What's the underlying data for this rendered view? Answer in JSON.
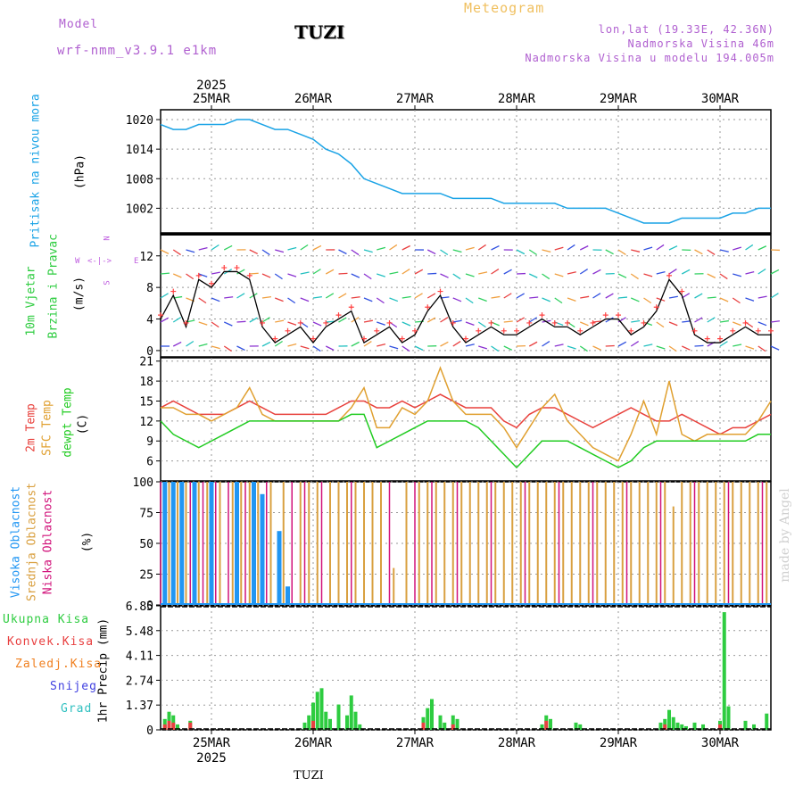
{
  "header": {
    "model_label": "Model",
    "model_name": "wrf-nmm_v3.9.1 e1km",
    "station": "TUZI",
    "title": "Meteogram",
    "lonlat": "lon,lat (19.33E, 42.36N)",
    "altitude": "Nadmorska Visina 46m",
    "model_altitude": "Nadmorska Visina u modelu 194.005m",
    "watermark": "made by Angel",
    "footer_station": "TUZI"
  },
  "colors": {
    "pressure": "#1aa3e6",
    "temp2m": "#e8413c",
    "sfc": "#e0a030",
    "dewpt": "#22cc22",
    "high_cloud": "#2196f3",
    "mid_cloud": "#d9a040",
    "low_cloud": "#d1127a",
    "total_precip": "#2ecc40",
    "conv_precip": "#e84040",
    "frozen": "#f08020",
    "snow": "#4040e0",
    "hail": "#30c0c0",
    "wind_label": "#2ecc40",
    "compass": "#c060e0"
  },
  "chart_data": [
    {
      "type": "line",
      "panel": "pressure",
      "ylabel_name": "Pritisak na nivou mora",
      "ylabel_unit": "(hPa)",
      "ylim": [
        997,
        1022
      ],
      "yticks": [
        "1020",
        "1014",
        "1008",
        "1002"
      ],
      "xlim": [
        0,
        144
      ],
      "grid": true,
      "series": [
        {
          "x": [
            0,
            3,
            6,
            9,
            12,
            15,
            18,
            21,
            24,
            27,
            30,
            33,
            36,
            39,
            42,
            45,
            48,
            51,
            54,
            57,
            60,
            63,
            66,
            69,
            72,
            75,
            78,
            81,
            84,
            87,
            90,
            93,
            96,
            99,
            102,
            105,
            108,
            111,
            114,
            117,
            120,
            123,
            126,
            129,
            132,
            135,
            138,
            141,
            144
          ],
          "values": [
            1019,
            1018,
            1018,
            1019,
            1019,
            1019,
            1020,
            1020,
            1019,
            1018,
            1018,
            1017,
            1016,
            1014,
            1013,
            1011,
            1008,
            1007,
            1006,
            1005,
            1005,
            1005,
            1005,
            1004,
            1004,
            1004,
            1004,
            1003,
            1003,
            1003,
            1003,
            1003,
            1002,
            1002,
            1002,
            1002,
            1001,
            1000,
            999,
            999,
            999,
            1000,
            1000,
            1000,
            1000,
            1001,
            1001,
            1002,
            1002
          ]
        }
      ]
    },
    {
      "type": "line",
      "panel": "wind",
      "ylabel_name1": "10m Vjetar",
      "ylabel_name2": "Brzina i Pravac",
      "ylabel_unit": "(m/s)",
      "ylim": [
        -0.8,
        14.8
      ],
      "yticks": [
        "12",
        "8",
        "4",
        "0"
      ],
      "compass": {
        "n": "N",
        "s": "S",
        "e": "E",
        "w": "W"
      },
      "xlim": [
        0,
        144
      ],
      "grid": true,
      "series": [
        {
          "x": [
            0,
            3,
            6,
            9,
            12,
            15,
            18,
            21,
            24,
            27,
            30,
            33,
            36,
            39,
            42,
            45,
            48,
            51,
            54,
            57,
            60,
            63,
            66,
            69,
            72,
            75,
            78,
            81,
            84,
            87,
            90,
            93,
            96,
            99,
            102,
            105,
            108,
            111,
            114,
            117,
            120,
            123,
            126,
            129,
            132,
            135,
            138,
            141,
            144
          ],
          "values": [
            4,
            7,
            3,
            9,
            8,
            10,
            10,
            9,
            3,
            1,
            2,
            3,
            1,
            3,
            4,
            5,
            1,
            2,
            3,
            1,
            2,
            5,
            7,
            3,
            1,
            2,
            3,
            2,
            2,
            3,
            4,
            3,
            3,
            2,
            3,
            4,
            4,
            2,
            3,
            5,
            9,
            7,
            2,
            1,
            1,
            2,
            3,
            2,
            2
          ]
        }
      ]
    },
    {
      "type": "line",
      "panel": "temperature",
      "ylabel_name1": "2m Temp",
      "ylabel_name2": "SFC Temp",
      "ylabel_name3": "dewpt Temp",
      "ylabel_unit": "(C)",
      "ylim": [
        3,
        21.5
      ],
      "yticks": [
        "21",
        "18",
        "15",
        "12",
        "9",
        "6"
      ],
      "xlim": [
        0,
        144
      ],
      "grid": true,
      "series": [
        {
          "x": [
            0,
            3,
            6,
            9,
            12,
            15,
            18,
            21,
            24,
            27,
            30,
            33,
            36,
            39,
            42,
            45,
            48,
            51,
            54,
            57,
            60,
            63,
            66,
            69,
            72,
            75,
            78,
            81,
            84,
            87,
            90,
            93,
            96,
            99,
            102,
            105,
            108,
            111,
            114,
            117,
            120,
            123,
            126,
            129,
            132,
            135,
            138,
            141,
            144
          ],
          "values": [
            14,
            15,
            14,
            13,
            13,
            13,
            14,
            15,
            14,
            13,
            13,
            13,
            13,
            13,
            14,
            15,
            15,
            14,
            14,
            15,
            14,
            15,
            16,
            15,
            14,
            14,
            14,
            12,
            11,
            13,
            14,
            14,
            13,
            12,
            11,
            12,
            13,
            14,
            13,
            12,
            12,
            13,
            12,
            11,
            10,
            11,
            11,
            12,
            13
          ]
        },
        {
          "x": [
            0,
            3,
            6,
            9,
            12,
            15,
            18,
            21,
            24,
            27,
            30,
            33,
            36,
            39,
            42,
            45,
            48,
            51,
            54,
            57,
            60,
            63,
            66,
            69,
            72,
            75,
            78,
            81,
            84,
            87,
            90,
            93,
            96,
            99,
            102,
            105,
            108,
            111,
            114,
            117,
            120,
            123,
            126,
            129,
            132,
            135,
            138,
            141,
            144
          ],
          "values": [
            14,
            14,
            13,
            13,
            12,
            13,
            14,
            17,
            13,
            12,
            12,
            12,
            12,
            12,
            12,
            14,
            17,
            11,
            11,
            14,
            13,
            15,
            20,
            15,
            13,
            13,
            13,
            11,
            8,
            11,
            14,
            16,
            12,
            10,
            8,
            7,
            6,
            10,
            15,
            10,
            18,
            10,
            9,
            10,
            10,
            10,
            10,
            12,
            15
          ]
        },
        {
          "x": [
            0,
            3,
            6,
            9,
            12,
            15,
            18,
            21,
            24,
            27,
            30,
            33,
            36,
            39,
            42,
            45,
            48,
            51,
            54,
            57,
            60,
            63,
            66,
            69,
            72,
            75,
            78,
            81,
            84,
            87,
            90,
            93,
            96,
            99,
            102,
            105,
            108,
            111,
            114,
            117,
            120,
            123,
            126,
            129,
            132,
            135,
            138,
            141,
            144
          ],
          "values": [
            12,
            10,
            9,
            8,
            9,
            10,
            11,
            12,
            12,
            12,
            12,
            12,
            12,
            12,
            12,
            13,
            13,
            8,
            9,
            10,
            11,
            12,
            12,
            12,
            12,
            11,
            9,
            7,
            5,
            7,
            9,
            9,
            9,
            8,
            7,
            6,
            5,
            6,
            8,
            9,
            9,
            9,
            9,
            9,
            9,
            9,
            9,
            10,
            10
          ]
        }
      ]
    },
    {
      "type": "bar",
      "panel": "cloud",
      "ylabel_name1": "Visoka Oblacnost",
      "ylabel_name2": "Srednja Oblacnost",
      "ylabel_name3": "Niska Oblacnost",
      "ylabel_unit": "(%)",
      "ylim": [
        0,
        100
      ],
      "yticks": [
        "100",
        "75",
        "50",
        "25",
        "0"
      ],
      "xlim": [
        0,
        144
      ],
      "grid": true,
      "series": [
        {
          "name": "Visoka Oblacnost",
          "x": [
            1,
            3,
            5,
            8,
            12,
            18,
            22,
            24,
            28,
            30
          ],
          "values": [
            100,
            100,
            100,
            100,
            100,
            100,
            100,
            90,
            60,
            15
          ]
        },
        {
          "name": "Srednja Oblacnost",
          "x": [
            2,
            4,
            6,
            9,
            11,
            14,
            17,
            19,
            21,
            23,
            26,
            29,
            33,
            35,
            37,
            40,
            42,
            44,
            46,
            48,
            50,
            52,
            55,
            58,
            61,
            63,
            65,
            67,
            69,
            71,
            73,
            75,
            77,
            79,
            81,
            83,
            85,
            87,
            89,
            91,
            93,
            95,
            97,
            99,
            101,
            103,
            105,
            107,
            109,
            111,
            113,
            115,
            117,
            119,
            121,
            123,
            125,
            127,
            129,
            131,
            133,
            135,
            137,
            139,
            141,
            143
          ],
          "values": [
            100,
            100,
            100,
            100,
            100,
            100,
            100,
            100,
            100,
            100,
            100,
            100,
            100,
            100,
            100,
            100,
            100,
            100,
            100,
            100,
            100,
            100,
            30,
            100,
            100,
            100,
            100,
            100,
            100,
            100,
            100,
            100,
            100,
            100,
            100,
            100,
            100,
            100,
            100,
            100,
            100,
            100,
            100,
            100,
            100,
            100,
            100,
            100,
            100,
            100,
            100,
            100,
            100,
            100,
            80,
            100,
            100,
            100,
            100,
            100,
            100,
            100,
            100,
            100,
            100,
            100
          ]
        },
        {
          "name": "Niska Oblacnost",
          "x": [
            0,
            7,
            10,
            13,
            16,
            20,
            25,
            31,
            34,
            38,
            45,
            54,
            60,
            64,
            70,
            78,
            86,
            94,
            102,
            110,
            118,
            126,
            134,
            142
          ],
          "values": [
            100,
            100,
            100,
            100,
            100,
            100,
            100,
            100,
            100,
            100,
            100,
            100,
            100,
            100,
            100,
            100,
            100,
            100,
            100,
            100,
            100,
            100,
            100,
            100
          ]
        }
      ]
    },
    {
      "type": "bar",
      "panel": "precip",
      "legend": [
        "Ukupna Kisa",
        "Konvek.Kisa",
        "Zaledj.Kisa",
        "Snijeg",
        "Grad"
      ],
      "ylabel_unit": "1hr Precip (mm)",
      "ylim": [
        0,
        6.85
      ],
      "yticks": [
        "6.85",
        "5.48",
        "4.11",
        "2.74",
        "1.37",
        "0"
      ],
      "xlim": [
        0,
        144
      ],
      "grid": true,
      "date_labels": [
        "25MAR",
        "26MAR",
        "27MAR",
        "28MAR",
        "29MAR",
        "30MAR"
      ],
      "date_hours": [
        12,
        36,
        60,
        84,
        108,
        132
      ],
      "year": "2025",
      "series": [
        {
          "name": "Ukupna Kisa",
          "x": [
            1,
            2,
            3,
            4,
            7,
            34,
            35,
            36,
            37,
            38,
            39,
            40,
            42,
            44,
            45,
            46,
            47,
            62,
            63,
            64,
            66,
            67,
            69,
            70,
            90,
            91,
            92,
            98,
            99,
            118,
            119,
            120,
            121,
            122,
            123,
            124,
            126,
            128,
            132,
            133,
            134,
            138,
            140,
            143
          ],
          "values": [
            0.6,
            1.0,
            0.8,
            0.3,
            0.5,
            0.4,
            0.8,
            1.5,
            2.1,
            2.3,
            1.0,
            0.6,
            1.4,
            0.8,
            1.9,
            1.0,
            0.3,
            0.7,
            1.2,
            1.7,
            0.8,
            0.4,
            0.8,
            0.6,
            0.3,
            0.8,
            0.6,
            0.4,
            0.3,
            0.4,
            0.6,
            1.1,
            0.7,
            0.4,
            0.3,
            0.2,
            0.4,
            0.3,
            0.5,
            6.5,
            1.3,
            0.5,
            0.3,
            0.9
          ]
        },
        {
          "name": "Konvek.Kisa",
          "x": [
            1,
            2,
            3,
            7,
            36,
            62,
            69,
            91,
            119,
            132
          ],
          "values": [
            0.3,
            0.5,
            0.4,
            0.4,
            0.5,
            0.4,
            0.3,
            0.5,
            0.3,
            0.3
          ]
        }
      ]
    }
  ]
}
